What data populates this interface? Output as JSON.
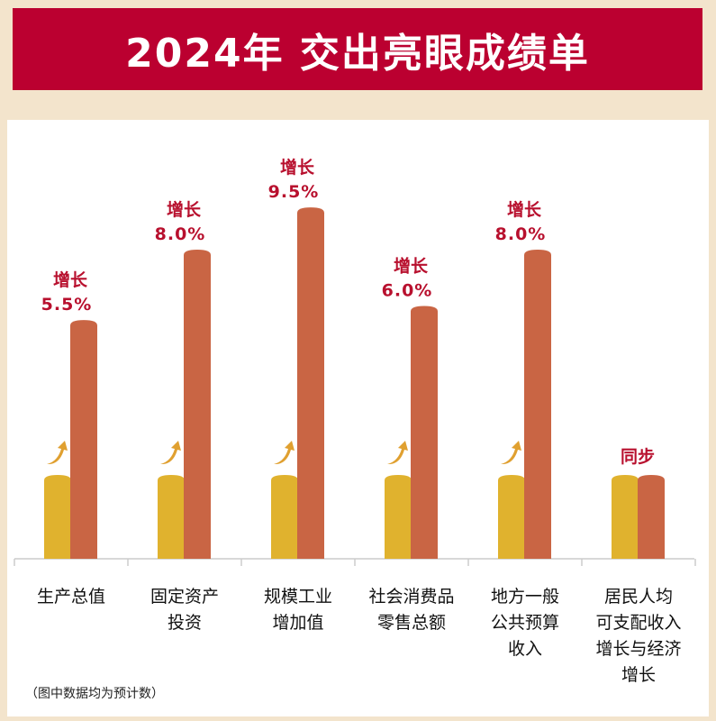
{
  "title": "2024年  交出亮眼成绩单",
  "footnote": "（图中数据均为预计数）",
  "colors": {
    "banner": "#bb0030",
    "base_bar": "#e0b22e",
    "growth_bar": "#c96544",
    "label": "#b8102e",
    "arrow": "#e0a030"
  },
  "chart_data": {
    "type": "bar",
    "title": "2024年  交出亮眼成绩单",
    "categories": [
      [
        "生产总值"
      ],
      [
        "固定资产",
        "投资"
      ],
      [
        "规模工业",
        "增加值"
      ],
      [
        "社会消费品",
        "零售总额"
      ],
      [
        "地方一般",
        "公共预算",
        "收入"
      ],
      [
        "居民人均",
        "可支配收入",
        "增长与经济",
        "增长"
      ]
    ],
    "series": [
      {
        "name": "base",
        "values": [
          0,
          0,
          0,
          0,
          0,
          0
        ]
      },
      {
        "name": "growth",
        "values": [
          5.5,
          8.0,
          9.5,
          6.0,
          8.0,
          0
        ]
      }
    ],
    "labels": [
      {
        "top": "增长",
        "value": "5.5%"
      },
      {
        "top": "增长",
        "value": "8.0%"
      },
      {
        "top": "增长",
        "value": "9.5%"
      },
      {
        "top": "增长",
        "value": "6.0%"
      },
      {
        "top": "增长",
        "value": "8.0%"
      },
      {
        "top": "同步",
        "value": ""
      }
    ],
    "show_arrow": [
      true,
      true,
      true,
      true,
      true,
      false
    ],
    "grid": false,
    "unit": "%"
  }
}
